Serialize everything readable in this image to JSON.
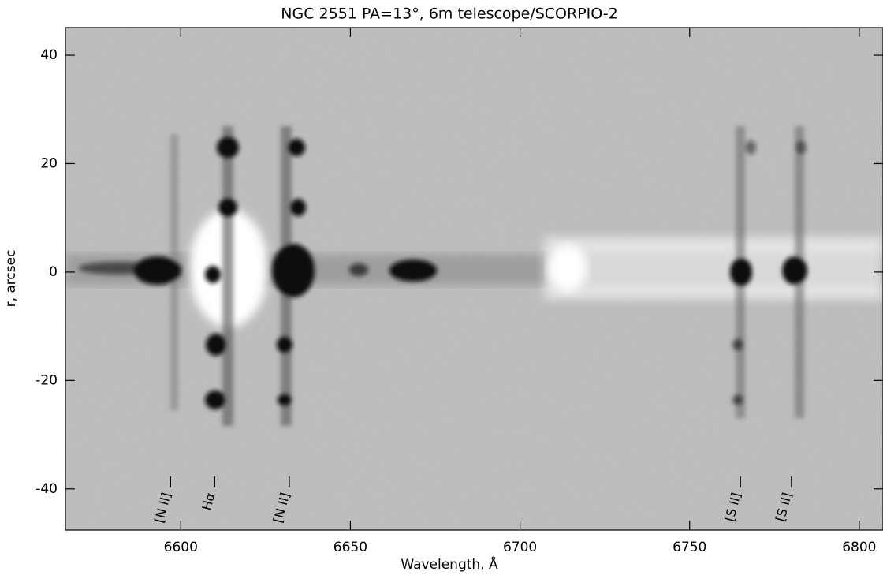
{
  "chart_data": {
    "type": "image",
    "title": "NGC 2551 PA=13°, 6m telescope/SCORPIO-2",
    "x_label": "Wavelength, Å",
    "y_label": "r, arcsec",
    "xlim": [
      6566,
      6807
    ],
    "ylim": [
      -47.6,
      45.1
    ],
    "xticks": [
      6600,
      6650,
      6700,
      6750,
      6800
    ],
    "yticks": [
      -40,
      -20,
      0,
      20,
      40
    ],
    "annotations": [
      {
        "text": "[N II]",
        "x": 6597
      },
      {
        "text": "Hα",
        "x": 6610
      },
      {
        "text": "[N II]",
        "x": 6632
      },
      {
        "text": "[S II]",
        "x": 6765
      },
      {
        "text": "[S II]",
        "x": 6780
      }
    ]
  }
}
